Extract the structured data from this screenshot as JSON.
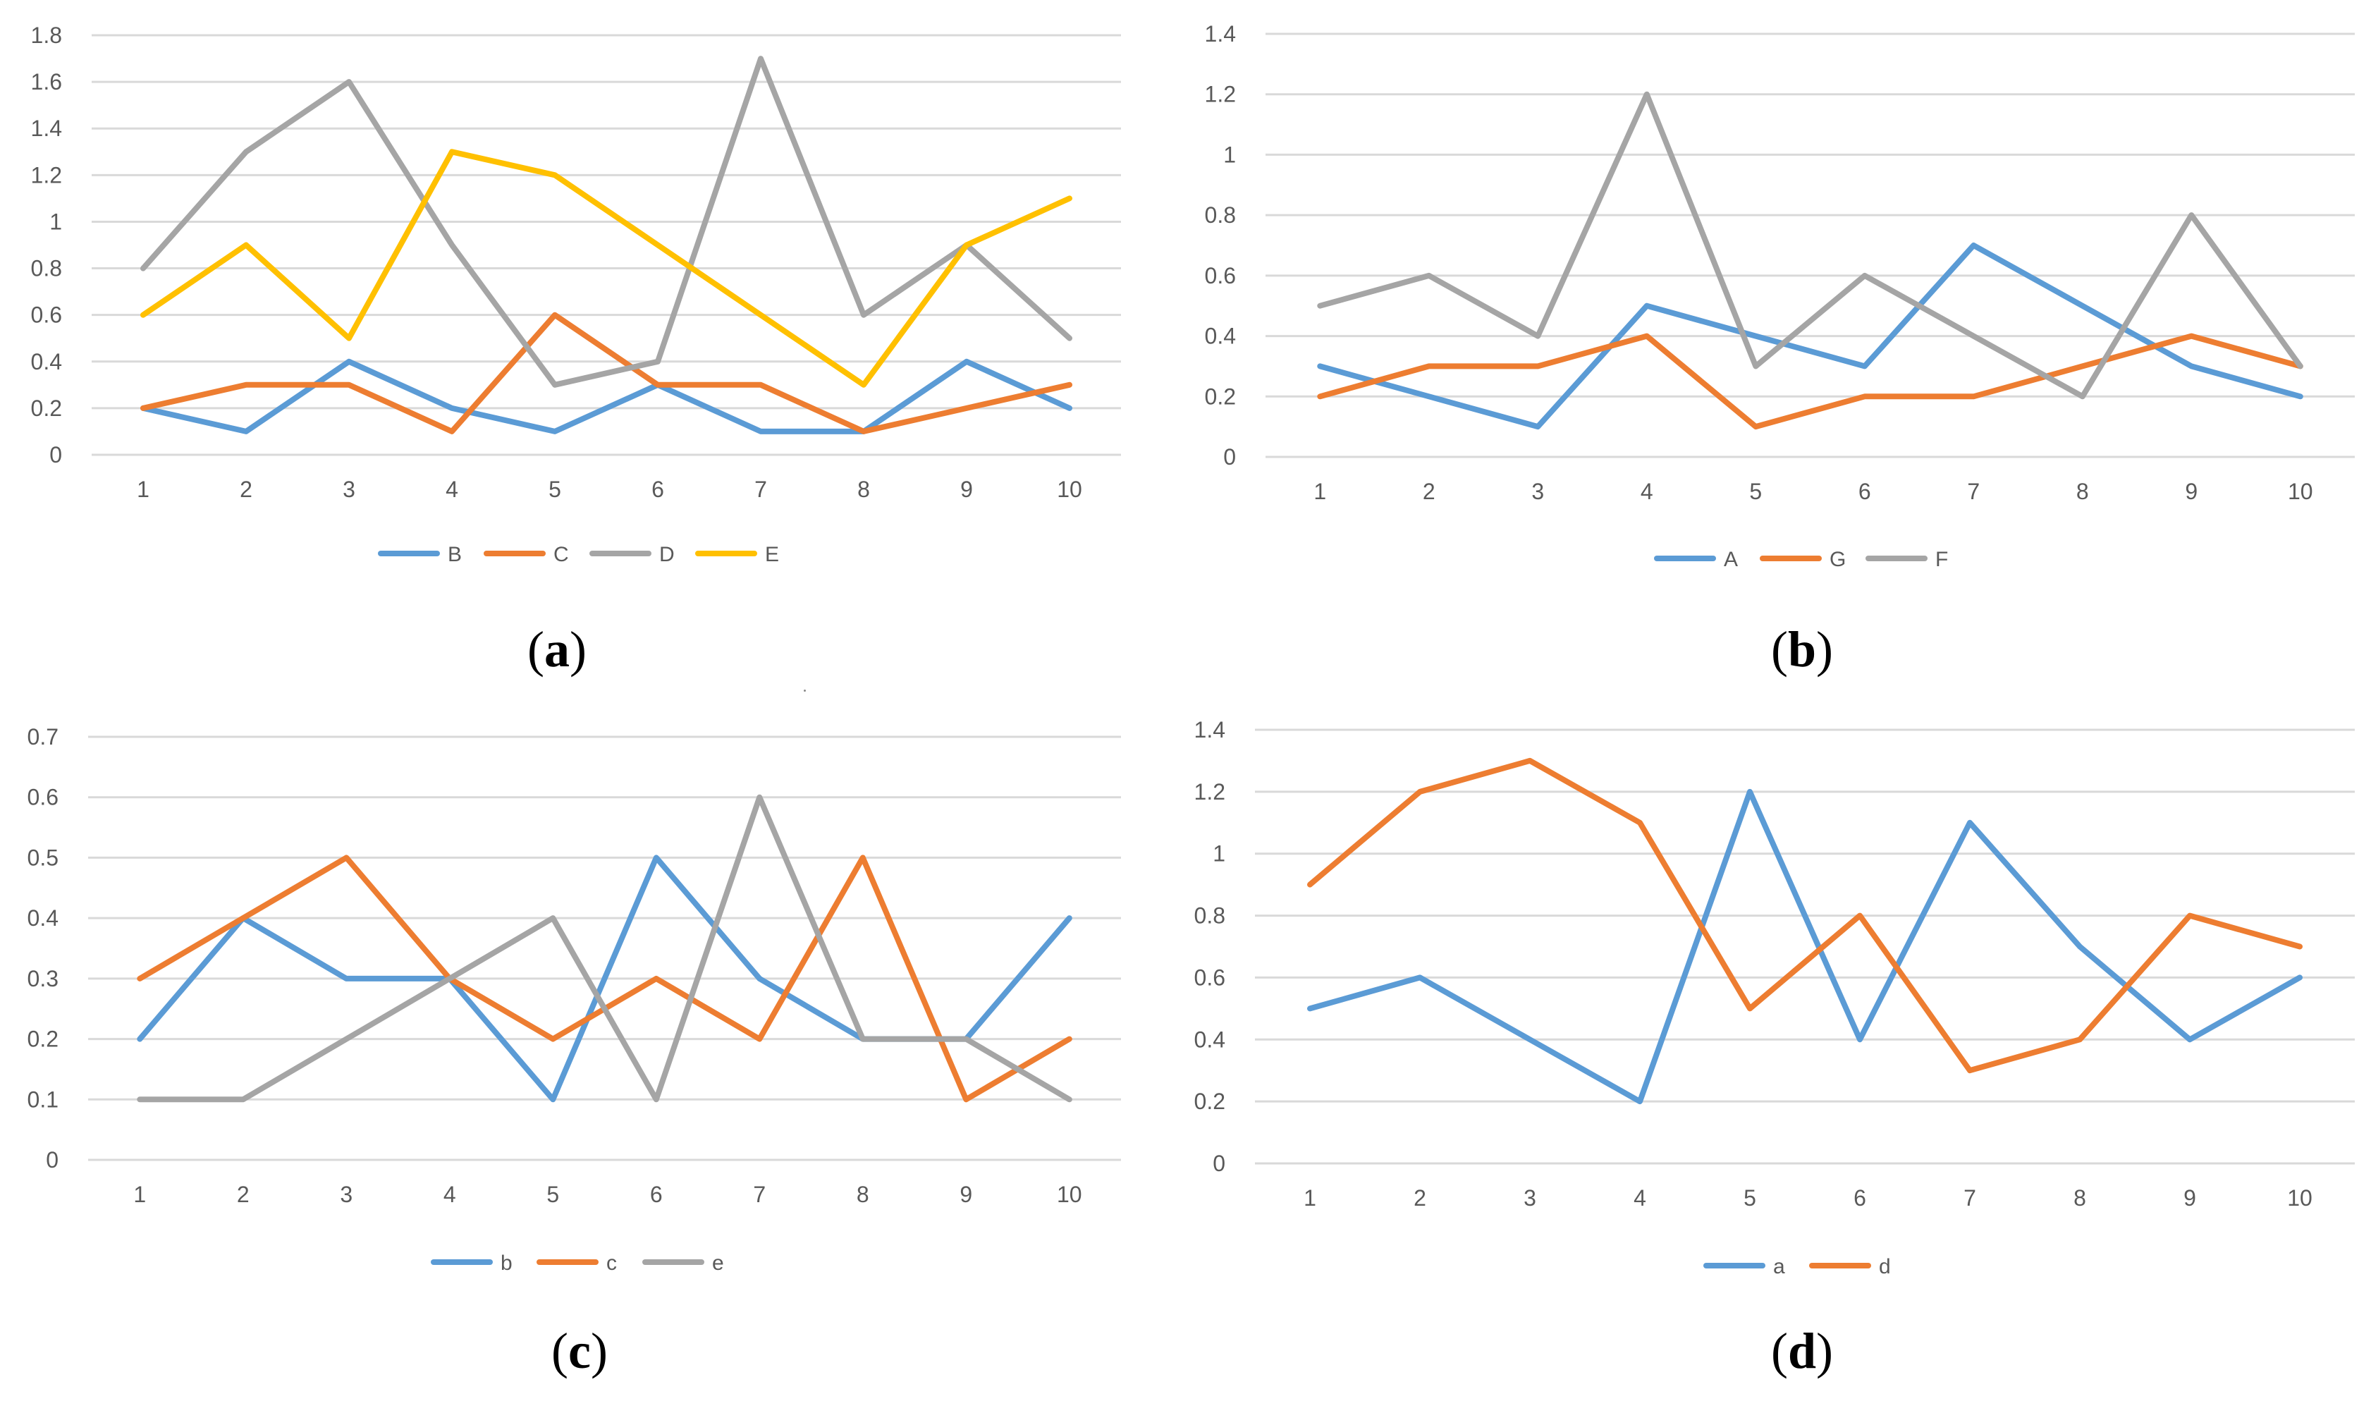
{
  "chart_data": [
    {
      "type": "line",
      "panel": "a",
      "caption_letter": "a",
      "categories": [
        "1",
        "2",
        "3",
        "4",
        "5",
        "6",
        "7",
        "8",
        "9",
        "10"
      ],
      "yticks": [
        "0",
        "0.2",
        "0.4",
        "0.6",
        "0.8",
        "1",
        "1.2",
        "1.4",
        "1.6",
        "1.8"
      ],
      "ylim": [
        0,
        1.8
      ],
      "series": [
        {
          "name": "B",
          "color": "#5b9bd5",
          "values": [
            0.2,
            0.1,
            0.4,
            0.2,
            0.1,
            0.3,
            0.1,
            0.1,
            0.4,
            0.2
          ]
        },
        {
          "name": "C",
          "color": "#ed7d31",
          "values": [
            0.2,
            0.3,
            0.3,
            0.1,
            0.6,
            0.3,
            0.3,
            0.1,
            0.2,
            0.3
          ]
        },
        {
          "name": "D",
          "color": "#a5a5a5",
          "values": [
            0.8,
            1.3,
            1.6,
            0.9,
            0.3,
            0.4,
            1.7,
            0.6,
            0.9,
            0.5
          ]
        },
        {
          "name": "E",
          "color": "#ffc000",
          "values": [
            0.6,
            0.9,
            0.5,
            1.3,
            1.2,
            0.9,
            0.6,
            0.3,
            0.9,
            1.1
          ]
        }
      ]
    },
    {
      "type": "line",
      "panel": "b",
      "caption_letter": "b",
      "categories": [
        "1",
        "2",
        "3",
        "4",
        "5",
        "6",
        "7",
        "8",
        "9",
        "10"
      ],
      "yticks": [
        "0",
        "0.2",
        "0.4",
        "0.6",
        "0.8",
        "1",
        "1.2",
        "1.4"
      ],
      "ylim": [
        0,
        1.4
      ],
      "series": [
        {
          "name": "A",
          "color": "#5b9bd5",
          "values": [
            0.3,
            0.2,
            0.1,
            0.5,
            0.4,
            0.3,
            0.7,
            0.5,
            0.3,
            0.2
          ]
        },
        {
          "name": "G",
          "color": "#ed7d31",
          "values": [
            0.2,
            0.3,
            0.3,
            0.4,
            0.1,
            0.2,
            0.2,
            0.3,
            0.4,
            0.3
          ]
        },
        {
          "name": "F",
          "color": "#a5a5a5",
          "values": [
            0.5,
            0.6,
            0.4,
            1.2,
            0.3,
            0.6,
            0.4,
            0.2,
            0.8,
            0.3
          ]
        }
      ]
    },
    {
      "type": "line",
      "panel": "c",
      "caption_letter": "c",
      "categories": [
        "1",
        "2",
        "3",
        "4",
        "5",
        "6",
        "7",
        "8",
        "9",
        "10"
      ],
      "yticks": [
        "0",
        "0.1",
        "0.2",
        "0.3",
        "0.4",
        "0.5",
        "0.6",
        "0.7"
      ],
      "ylim": [
        0,
        0.7
      ],
      "series": [
        {
          "name": "b",
          "color": "#5b9bd5",
          "values": [
            0.2,
            0.4,
            0.3,
            0.3,
            0.1,
            0.5,
            0.3,
            0.2,
            0.2,
            0.4
          ]
        },
        {
          "name": "c",
          "color": "#ed7d31",
          "values": [
            0.3,
            0.4,
            0.5,
            0.3,
            0.2,
            0.3,
            0.2,
            0.5,
            0.1,
            0.2
          ]
        },
        {
          "name": "e",
          "color": "#a5a5a5",
          "values": [
            0.1,
            0.1,
            0.2,
            0.3,
            0.4,
            0.1,
            0.6,
            0.2,
            0.2,
            0.1
          ]
        }
      ]
    },
    {
      "type": "line",
      "panel": "d",
      "caption_letter": "d",
      "categories": [
        "1",
        "2",
        "3",
        "4",
        "5",
        "6",
        "7",
        "8",
        "9",
        "10"
      ],
      "yticks": [
        "0",
        "0.2",
        "0.4",
        "0.6",
        "0.8",
        "1",
        "1.2",
        "1.4"
      ],
      "ylim": [
        0,
        1.4
      ],
      "series": [
        {
          "name": "a",
          "color": "#5b9bd5",
          "values": [
            0.5,
            0.6,
            0.4,
            0.2,
            1.2,
            0.4,
            1.1,
            0.7,
            0.4,
            0.6
          ]
        },
        {
          "name": "d",
          "color": "#ed7d31",
          "values": [
            0.9,
            1.2,
            1.3,
            1.1,
            0.5,
            0.8,
            0.3,
            0.4,
            0.8,
            0.7
          ]
        }
      ]
    }
  ]
}
